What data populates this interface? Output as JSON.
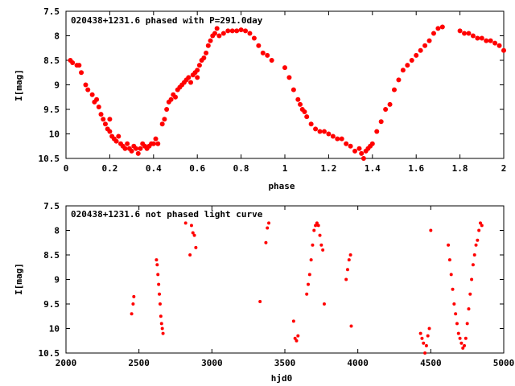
{
  "chart_data": [
    {
      "type": "scatter",
      "title": "020438+1231.6 phased with P=291.0day",
      "xlabel": "phase",
      "ylabel": "I[mag]",
      "xlim": [
        0,
        2
      ],
      "ylim": [
        7.5,
        10.5
      ],
      "y_inverted": true,
      "xticks": [
        0,
        0.2,
        0.4,
        0.6,
        0.8,
        1,
        1.2,
        1.4,
        1.6,
        1.8,
        2
      ],
      "xtick_labels": [
        "0",
        "0.2",
        "0.4",
        "0.6",
        "0.8",
        "1",
        "1.2",
        "1.4",
        "1.6",
        "1.8",
        "2"
      ],
      "yticks": [
        7.5,
        8,
        8.5,
        9,
        9.5,
        10,
        10.5
      ],
      "ytick_labels": [
        "7.5",
        "8",
        "8.5",
        "9",
        "9.5",
        "10",
        "10.5"
      ],
      "marker_color": "#ff0000",
      "x": [
        0.02,
        0.03,
        0.05,
        0.06,
        0.07,
        0.09,
        0.1,
        0.12,
        0.13,
        0.14,
        0.15,
        0.16,
        0.17,
        0.18,
        0.19,
        0.2,
        0.2,
        0.21,
        0.22,
        0.23,
        0.24,
        0.25,
        0.26,
        0.27,
        0.28,
        0.29,
        0.3,
        0.31,
        0.32,
        0.33,
        0.34,
        0.35,
        0.36,
        0.37,
        0.38,
        0.39,
        0.4,
        0.41,
        0.42,
        0.44,
        0.45,
        0.46,
        0.47,
        0.48,
        0.49,
        0.5,
        0.51,
        0.52,
        0.53,
        0.54,
        0.55,
        0.56,
        0.57,
        0.58,
        0.59,
        0.6,
        0.6,
        0.61,
        0.62,
        0.63,
        0.64,
        0.65,
        0.66,
        0.67,
        0.68,
        0.69,
        0.7,
        0.72,
        0.74,
        0.76,
        0.78,
        0.8,
        0.82,
        0.84,
        0.86,
        0.88,
        0.9,
        0.92,
        0.94,
        1.0,
        1.02,
        1.04,
        1.06,
        1.07,
        1.08,
        1.09,
        1.1,
        1.12,
        1.14,
        1.16,
        1.18,
        1.2,
        1.22,
        1.24,
        1.26,
        1.28,
        1.3,
        1.32,
        1.34,
        1.35,
        1.36,
        1.37,
        1.38,
        1.39,
        1.4,
        1.42,
        1.44,
        1.46,
        1.48,
        1.5,
        1.52,
        1.54,
        1.56,
        1.58,
        1.6,
        1.62,
        1.64,
        1.66,
        1.68,
        1.7,
        1.72,
        1.8,
        1.82,
        1.84,
        1.86,
        1.88,
        1.9,
        1.92,
        1.94,
        1.96,
        1.98,
        2.0
      ],
      "y": [
        8.5,
        8.55,
        8.6,
        8.6,
        8.75,
        9.0,
        9.1,
        9.2,
        9.35,
        9.3,
        9.45,
        9.6,
        9.7,
        9.8,
        9.9,
        9.95,
        9.7,
        10.05,
        10.1,
        10.15,
        10.05,
        10.2,
        10.25,
        10.3,
        10.2,
        10.3,
        10.35,
        10.25,
        10.3,
        10.4,
        10.3,
        10.2,
        10.25,
        10.3,
        10.25,
        10.2,
        10.2,
        10.1,
        10.2,
        9.8,
        9.7,
        9.5,
        9.35,
        9.3,
        9.2,
        9.25,
        9.1,
        9.05,
        9.0,
        8.95,
        8.9,
        8.85,
        8.95,
        8.8,
        8.75,
        8.7,
        8.85,
        8.6,
        8.5,
        8.45,
        8.35,
        8.2,
        8.1,
        8.0,
        7.95,
        7.85,
        8.0,
        7.95,
        7.9,
        7.9,
        7.9,
        7.88,
        7.9,
        7.95,
        8.05,
        8.2,
        8.35,
        8.4,
        8.5,
        8.65,
        8.85,
        9.1,
        9.3,
        9.4,
        9.5,
        9.55,
        9.65,
        9.8,
        9.9,
        9.95,
        9.95,
        10.0,
        10.05,
        10.1,
        10.1,
        10.2,
        10.25,
        10.35,
        10.3,
        10.4,
        10.5,
        10.35,
        10.3,
        10.25,
        10.2,
        9.95,
        9.75,
        9.5,
        9.4,
        9.1,
        8.9,
        8.7,
        8.6,
        8.5,
        8.4,
        8.3,
        8.2,
        8.1,
        7.95,
        7.85,
        7.82,
        7.9,
        7.95,
        7.95,
        8.0,
        8.05,
        8.05,
        8.1,
        8.1,
        8.15,
        8.2,
        8.3
      ]
    },
    {
      "type": "scatter",
      "title": "020438+1231.6 not phased light curve",
      "xlabel": "hjd0",
      "ylabel": "I[mag]",
      "xlim": [
        2000,
        5000
      ],
      "ylim": [
        7.5,
        10.5
      ],
      "y_inverted": true,
      "xticks": [
        2000,
        2500,
        3000,
        3500,
        4000,
        4500,
        5000
      ],
      "xtick_labels": [
        "2000",
        "2500",
        "3000",
        "3500",
        "4000",
        "4500",
        "5000"
      ],
      "yticks": [
        7.5,
        8,
        8.5,
        9,
        9.5,
        10,
        10.5
      ],
      "ytick_labels": [
        "7.5",
        "8",
        "8.5",
        "9",
        "9.5",
        "10",
        "10.5"
      ],
      "marker_color": "#ff0000",
      "x": [
        2450,
        2460,
        2465,
        2620,
        2625,
        2630,
        2635,
        2640,
        2645,
        2650,
        2655,
        2660,
        2665,
        2820,
        2850,
        2860,
        2870,
        2880,
        2890,
        3330,
        3370,
        3380,
        3390,
        3560,
        3570,
        3580,
        3590,
        3650,
        3660,
        3670,
        3680,
        3690,
        3700,
        3710,
        3720,
        3730,
        3740,
        3750,
        3760,
        3770,
        3920,
        3930,
        3940,
        3950,
        3955,
        4430,
        4440,
        4450,
        4460,
        4470,
        4480,
        4490,
        4500,
        4620,
        4630,
        4640,
        4650,
        4660,
        4670,
        4680,
        4690,
        4700,
        4710,
        4720,
        4730,
        4740,
        4750,
        4760,
        4770,
        4780,
        4790,
        4800,
        4810,
        4820,
        4830,
        4840,
        4850
      ],
      "y": [
        9.7,
        9.5,
        9.35,
        8.6,
        8.7,
        8.9,
        9.1,
        9.3,
        9.5,
        9.75,
        9.9,
        10.0,
        10.1,
        7.85,
        8.5,
        7.9,
        8.05,
        8.1,
        8.35,
        9.45,
        8.25,
        7.95,
        7.85,
        9.85,
        10.2,
        10.25,
        10.15,
        9.3,
        9.1,
        8.9,
        8.6,
        8.3,
        8.0,
        7.9,
        7.85,
        7.9,
        8.1,
        8.3,
        8.4,
        9.5,
        9.0,
        8.8,
        8.6,
        8.5,
        9.95,
        10.1,
        10.2,
        10.3,
        10.5,
        10.35,
        10.15,
        10.0,
        8.0,
        8.3,
        8.6,
        8.9,
        9.2,
        9.5,
        9.7,
        9.9,
        10.1,
        10.2,
        10.3,
        10.4,
        10.35,
        10.2,
        9.9,
        9.6,
        9.3,
        9.0,
        8.7,
        8.5,
        8.3,
        8.2,
        8.0,
        7.85,
        7.9
      ]
    }
  ]
}
